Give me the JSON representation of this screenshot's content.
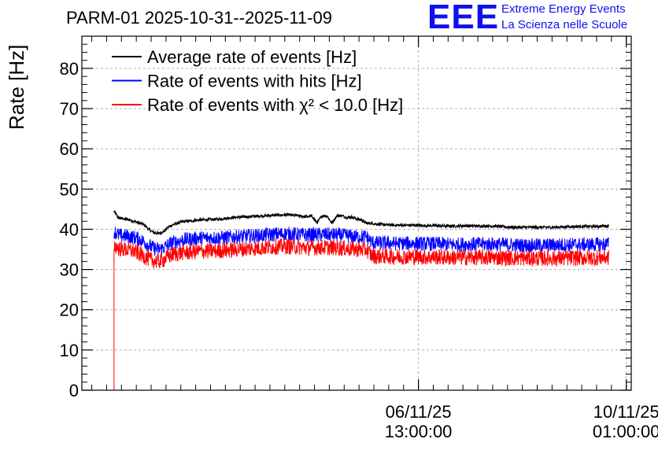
{
  "header": {
    "title": "PARM-01 2025-10-31--2025-11-09",
    "logo_text": "EEE",
    "logo_line1": "Extreme Energy Events",
    "logo_line2": "La Scienza nelle Scuole"
  },
  "chart_data": {
    "type": "line",
    "title": "PARM-01 2025-10-31--2025-11-09",
    "xlabel": "",
    "ylabel": "Rate [Hz]",
    "ylim": [
      0,
      88
    ],
    "x_unit": "hours since 2025-11-01 00:00",
    "xlim": [
      -3,
      219
    ],
    "grid": true,
    "y_ticks": [
      0,
      10,
      20,
      30,
      40,
      50,
      60,
      70,
      80
    ],
    "y_tick_labels": [
      "0",
      "10",
      "20",
      "30",
      "40",
      "50",
      "60",
      "70",
      "80"
    ],
    "x_ticks": [
      {
        "x": 133,
        "date": "06/11/25",
        "time": "13:00:00"
      },
      {
        "x": 217,
        "date": "10/11/25",
        "time": "01:00:00"
      }
    ],
    "legend_position": "top-left",
    "series": [
      {
        "name": "Average rate of events [Hz]",
        "legend_label": "Average rate of events [Hz]",
        "color": "#000000",
        "noise": 0.35,
        "x": [
          10,
          11,
          12,
          14,
          16,
          18,
          20,
          22,
          24,
          26,
          28,
          30,
          32,
          34,
          36,
          38,
          40,
          44,
          48,
          52,
          56,
          60,
          64,
          68,
          72,
          76,
          80,
          84,
          88,
          90,
          92,
          94,
          96,
          98,
          100,
          102,
          104,
          106,
          108,
          110,
          112,
          114,
          116,
          118,
          120,
          124,
          128,
          132,
          136,
          140,
          144,
          148,
          152,
          156,
          160,
          164,
          166,
          168,
          172,
          176,
          180,
          184,
          188,
          192,
          196,
          200,
          204,
          208,
          210
        ],
        "values": [
          44.5,
          43.5,
          42.8,
          42.6,
          42.4,
          42.0,
          41.6,
          41.2,
          40.0,
          39.2,
          39.0,
          39.4,
          40.6,
          41.2,
          41.6,
          41.9,
          42.0,
          42.3,
          42.4,
          42.5,
          42.8,
          43.0,
          43.1,
          43.3,
          43.4,
          43.5,
          43.6,
          43.4,
          43.1,
          43.3,
          41.6,
          43.3,
          43.4,
          41.5,
          43.3,
          43.4,
          42.9,
          43.1,
          42.6,
          42.3,
          41.5,
          41.5,
          41.3,
          41.2,
          41.1,
          41.0,
          41.0,
          41.0,
          40.9,
          40.9,
          40.8,
          40.8,
          40.9,
          40.8,
          40.8,
          40.8,
          40.7,
          40.6,
          40.5,
          40.5,
          40.5,
          40.5,
          40.5,
          40.6,
          40.7,
          40.7,
          40.7,
          40.8,
          40.8
        ]
      },
      {
        "name": "Rate of events with hits [Hz]",
        "legend_label": "Rate of events with hits [Hz]",
        "color": "#0000ff",
        "noise": 1.8,
        "x": [
          10,
          11,
          12,
          14,
          16,
          18,
          20,
          22,
          24,
          26,
          28,
          30,
          32,
          34,
          36,
          38,
          40,
          44,
          48,
          52,
          56,
          60,
          64,
          68,
          72,
          76,
          80,
          84,
          88,
          92,
          96,
          100,
          104,
          108,
          112,
          114,
          116,
          120,
          124,
          128,
          132,
          136,
          140,
          144,
          148,
          152,
          156,
          160,
          164,
          168,
          172,
          176,
          180,
          184,
          188,
          192,
          196,
          200,
          204,
          208,
          210
        ],
        "values": [
          39.5,
          39.0,
          38.5,
          38.4,
          38.2,
          38.0,
          37.6,
          37.0,
          36.0,
          35.3,
          35.0,
          35.3,
          36.2,
          36.8,
          37.0,
          37.4,
          37.5,
          37.8,
          37.9,
          37.9,
          38.0,
          38.2,
          38.3,
          38.4,
          38.6,
          38.8,
          38.9,
          38.7,
          38.6,
          38.7,
          38.7,
          38.6,
          38.4,
          38.1,
          38.2,
          36.8,
          36.6,
          36.6,
          36.5,
          36.5,
          36.5,
          36.4,
          36.4,
          36.3,
          36.2,
          36.3,
          36.3,
          36.3,
          36.3,
          36.2,
          36.1,
          36.0,
          36.0,
          36.0,
          36.1,
          36.1,
          36.2,
          36.2,
          36.2,
          36.3,
          36.3
        ]
      },
      {
        "name": "Rate of events with chi2 < 10.0 [Hz]",
        "legend_label": "Rate of events with χ² < 10.0 [Hz]",
        "color": "#ff0000",
        "noise": 2.0,
        "x": [
          10,
          11,
          12,
          14,
          16,
          18,
          20,
          22,
          24,
          26,
          28,
          30,
          32,
          34,
          36,
          38,
          40,
          44,
          48,
          52,
          56,
          60,
          64,
          68,
          72,
          76,
          80,
          84,
          88,
          92,
          96,
          100,
          104,
          108,
          112,
          114,
          116,
          120,
          124,
          128,
          132,
          136,
          140,
          144,
          148,
          152,
          156,
          160,
          164,
          168,
          172,
          176,
          180,
          184,
          188,
          192,
          196,
          200,
          204,
          208,
          210
        ],
        "values": [
          36.0,
          35.6,
          35.2,
          35.0,
          34.8,
          34.6,
          34.0,
          33.3,
          32.6,
          32.2,
          32.0,
          32.4,
          33.3,
          33.8,
          34.0,
          34.2,
          34.3,
          34.5,
          34.6,
          34.7,
          34.8,
          35.0,
          35.2,
          35.3,
          35.5,
          35.7,
          35.8,
          35.6,
          35.4,
          35.5,
          35.5,
          35.4,
          35.2,
          35.0,
          35.0,
          33.5,
          33.3,
          33.3,
          33.2,
          33.2,
          33.2,
          33.1,
          33.1,
          33.0,
          33.0,
          33.0,
          33.0,
          33.0,
          33.0,
          32.9,
          32.9,
          32.8,
          32.8,
          32.8,
          32.8,
          32.8,
          32.9,
          32.9,
          32.9,
          33.0,
          33.0
        ]
      }
    ]
  }
}
